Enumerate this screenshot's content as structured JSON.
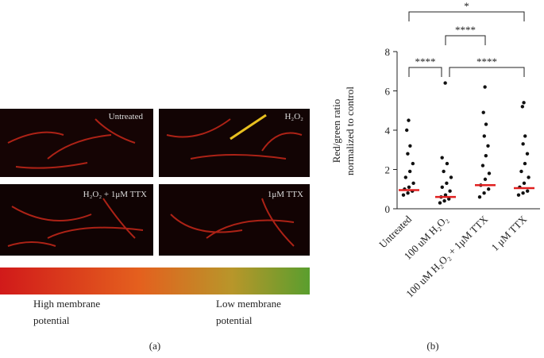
{
  "panel_a": {
    "images": [
      "Untreated",
      "H₂O₂",
      "H₂O₂ + 1μM TTX",
      "1μM TTX"
    ],
    "colorbar_left": [
      "High membrane",
      "potential"
    ],
    "colorbar_right": [
      "Low membrane",
      "potential"
    ],
    "caption": "(a)"
  },
  "chart_data": {
    "type": "scatter",
    "categories": [
      "Untreated",
      "100 uM H₂O₂",
      "100 uM H₂O₂ + 1μM TTX",
      "1 μM TTX"
    ],
    "ylabel": [
      "Red/green ratio",
      "normalized to control"
    ],
    "ylim": [
      0,
      8
    ],
    "yticks": [
      0,
      2,
      4,
      6,
      8
    ],
    "point_color": "#111111",
    "mean_color": "#e02020",
    "means": [
      0.95,
      0.6,
      1.2,
      1.05
    ],
    "points": [
      [
        0.7,
        0.8,
        0.9,
        1.0,
        1.1,
        1.3,
        1.6,
        1.9,
        2.3,
        2.8,
        3.2,
        4.0,
        4.5
      ],
      [
        0.3,
        0.4,
        0.5,
        0.6,
        0.7,
        0.9,
        1.1,
        1.3,
        1.6,
        1.9,
        2.3,
        2.6,
        6.4
      ],
      [
        0.6,
        0.8,
        1.0,
        1.2,
        1.5,
        1.8,
        2.2,
        2.7,
        3.2,
        3.7,
        4.3,
        4.9,
        6.2
      ],
      [
        0.7,
        0.8,
        0.9,
        1.1,
        1.3,
        1.6,
        1.9,
        2.3,
        2.8,
        3.3,
        3.7,
        5.2,
        5.4
      ]
    ],
    "significance": [
      {
        "from": 0,
        "to": 3,
        "label": "*"
      },
      {
        "from": 1,
        "to": 2,
        "label": "****"
      },
      {
        "from": 0,
        "to": 1,
        "label": "****"
      },
      {
        "from": 1,
        "to": 3,
        "label": "****"
      }
    ],
    "caption": "(b)"
  }
}
